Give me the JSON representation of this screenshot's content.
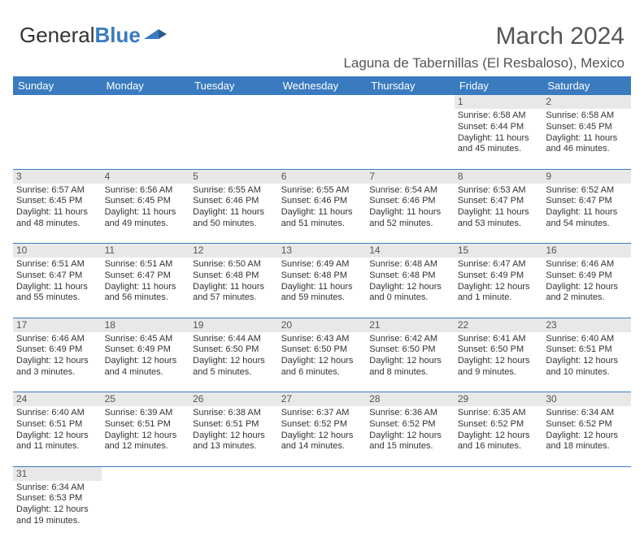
{
  "logo": {
    "text1": "General",
    "text2": "Blue"
  },
  "title": "March 2024",
  "location": "Laguna de Tabernillas (El Resbaloso), Mexico",
  "colors": {
    "header_bg": "#3a7bbf",
    "header_fg": "#ffffff",
    "daynum_bg": "#e8e8e8",
    "text": "#333333",
    "rule": "#3a7bbf"
  },
  "dayHeaders": [
    "Sunday",
    "Monday",
    "Tuesday",
    "Wednesday",
    "Thursday",
    "Friday",
    "Saturday"
  ],
  "weeks": [
    [
      null,
      null,
      null,
      null,
      null,
      {
        "n": "1",
        "sr": "6:58 AM",
        "ss": "6:44 PM",
        "dl": "11 hours and 45 minutes."
      },
      {
        "n": "2",
        "sr": "6:58 AM",
        "ss": "6:45 PM",
        "dl": "11 hours and 46 minutes."
      }
    ],
    [
      {
        "n": "3",
        "sr": "6:57 AM",
        "ss": "6:45 PM",
        "dl": "11 hours and 48 minutes."
      },
      {
        "n": "4",
        "sr": "6:56 AM",
        "ss": "6:45 PM",
        "dl": "11 hours and 49 minutes."
      },
      {
        "n": "5",
        "sr": "6:55 AM",
        "ss": "6:46 PM",
        "dl": "11 hours and 50 minutes."
      },
      {
        "n": "6",
        "sr": "6:55 AM",
        "ss": "6:46 PM",
        "dl": "11 hours and 51 minutes."
      },
      {
        "n": "7",
        "sr": "6:54 AM",
        "ss": "6:46 PM",
        "dl": "11 hours and 52 minutes."
      },
      {
        "n": "8",
        "sr": "6:53 AM",
        "ss": "6:47 PM",
        "dl": "11 hours and 53 minutes."
      },
      {
        "n": "9",
        "sr": "6:52 AM",
        "ss": "6:47 PM",
        "dl": "11 hours and 54 minutes."
      }
    ],
    [
      {
        "n": "10",
        "sr": "6:51 AM",
        "ss": "6:47 PM",
        "dl": "11 hours and 55 minutes."
      },
      {
        "n": "11",
        "sr": "6:51 AM",
        "ss": "6:47 PM",
        "dl": "11 hours and 56 minutes."
      },
      {
        "n": "12",
        "sr": "6:50 AM",
        "ss": "6:48 PM",
        "dl": "11 hours and 57 minutes."
      },
      {
        "n": "13",
        "sr": "6:49 AM",
        "ss": "6:48 PM",
        "dl": "11 hours and 59 minutes."
      },
      {
        "n": "14",
        "sr": "6:48 AM",
        "ss": "6:48 PM",
        "dl": "12 hours and 0 minutes."
      },
      {
        "n": "15",
        "sr": "6:47 AM",
        "ss": "6:49 PM",
        "dl": "12 hours and 1 minute."
      },
      {
        "n": "16",
        "sr": "6:46 AM",
        "ss": "6:49 PM",
        "dl": "12 hours and 2 minutes."
      }
    ],
    [
      {
        "n": "17",
        "sr": "6:46 AM",
        "ss": "6:49 PM",
        "dl": "12 hours and 3 minutes."
      },
      {
        "n": "18",
        "sr": "6:45 AM",
        "ss": "6:49 PM",
        "dl": "12 hours and 4 minutes."
      },
      {
        "n": "19",
        "sr": "6:44 AM",
        "ss": "6:50 PM",
        "dl": "12 hours and 5 minutes."
      },
      {
        "n": "20",
        "sr": "6:43 AM",
        "ss": "6:50 PM",
        "dl": "12 hours and 6 minutes."
      },
      {
        "n": "21",
        "sr": "6:42 AM",
        "ss": "6:50 PM",
        "dl": "12 hours and 8 minutes."
      },
      {
        "n": "22",
        "sr": "6:41 AM",
        "ss": "6:50 PM",
        "dl": "12 hours and 9 minutes."
      },
      {
        "n": "23",
        "sr": "6:40 AM",
        "ss": "6:51 PM",
        "dl": "12 hours and 10 minutes."
      }
    ],
    [
      {
        "n": "24",
        "sr": "6:40 AM",
        "ss": "6:51 PM",
        "dl": "12 hours and 11 minutes."
      },
      {
        "n": "25",
        "sr": "6:39 AM",
        "ss": "6:51 PM",
        "dl": "12 hours and 12 minutes."
      },
      {
        "n": "26",
        "sr": "6:38 AM",
        "ss": "6:51 PM",
        "dl": "12 hours and 13 minutes."
      },
      {
        "n": "27",
        "sr": "6:37 AM",
        "ss": "6:52 PM",
        "dl": "12 hours and 14 minutes."
      },
      {
        "n": "28",
        "sr": "6:36 AM",
        "ss": "6:52 PM",
        "dl": "12 hours and 15 minutes."
      },
      {
        "n": "29",
        "sr": "6:35 AM",
        "ss": "6:52 PM",
        "dl": "12 hours and 16 minutes."
      },
      {
        "n": "30",
        "sr": "6:34 AM",
        "ss": "6:52 PM",
        "dl": "12 hours and 18 minutes."
      }
    ],
    [
      {
        "n": "31",
        "sr": "6:34 AM",
        "ss": "6:53 PM",
        "dl": "12 hours and 19 minutes."
      },
      null,
      null,
      null,
      null,
      null,
      null
    ]
  ],
  "labels": {
    "sunrise": "Sunrise:",
    "sunset": "Sunset:",
    "daylight": "Daylight:"
  }
}
